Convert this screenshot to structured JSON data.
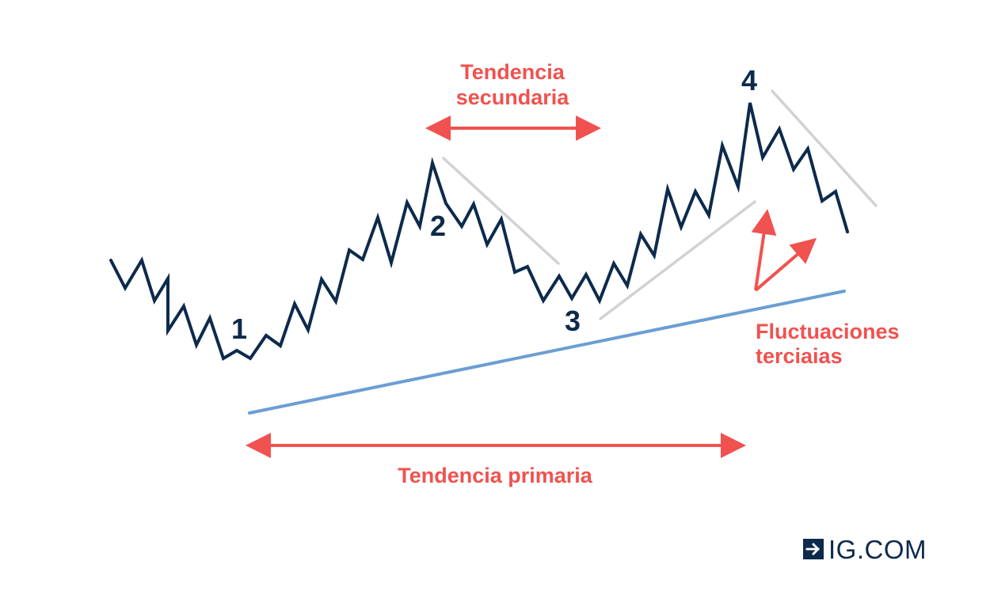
{
  "labels": {
    "secondary_line1": "Tendencia",
    "secondary_line2": "secundaria",
    "primary": "Tendencia primaria",
    "tertiary_line1": "Fluctuaciones",
    "tertiary_line2": "terciaias",
    "point1": "1",
    "point2": "2",
    "point3": "3",
    "point4": "4"
  },
  "logo": {
    "text": "IG.COM",
    "icon": "arrow-right-box-icon"
  },
  "colors": {
    "price_line": "#0d2a4c",
    "trend_line": "#6a9ed3",
    "annotation": "#f0524f",
    "guide_line": "#d0d2d4"
  }
}
